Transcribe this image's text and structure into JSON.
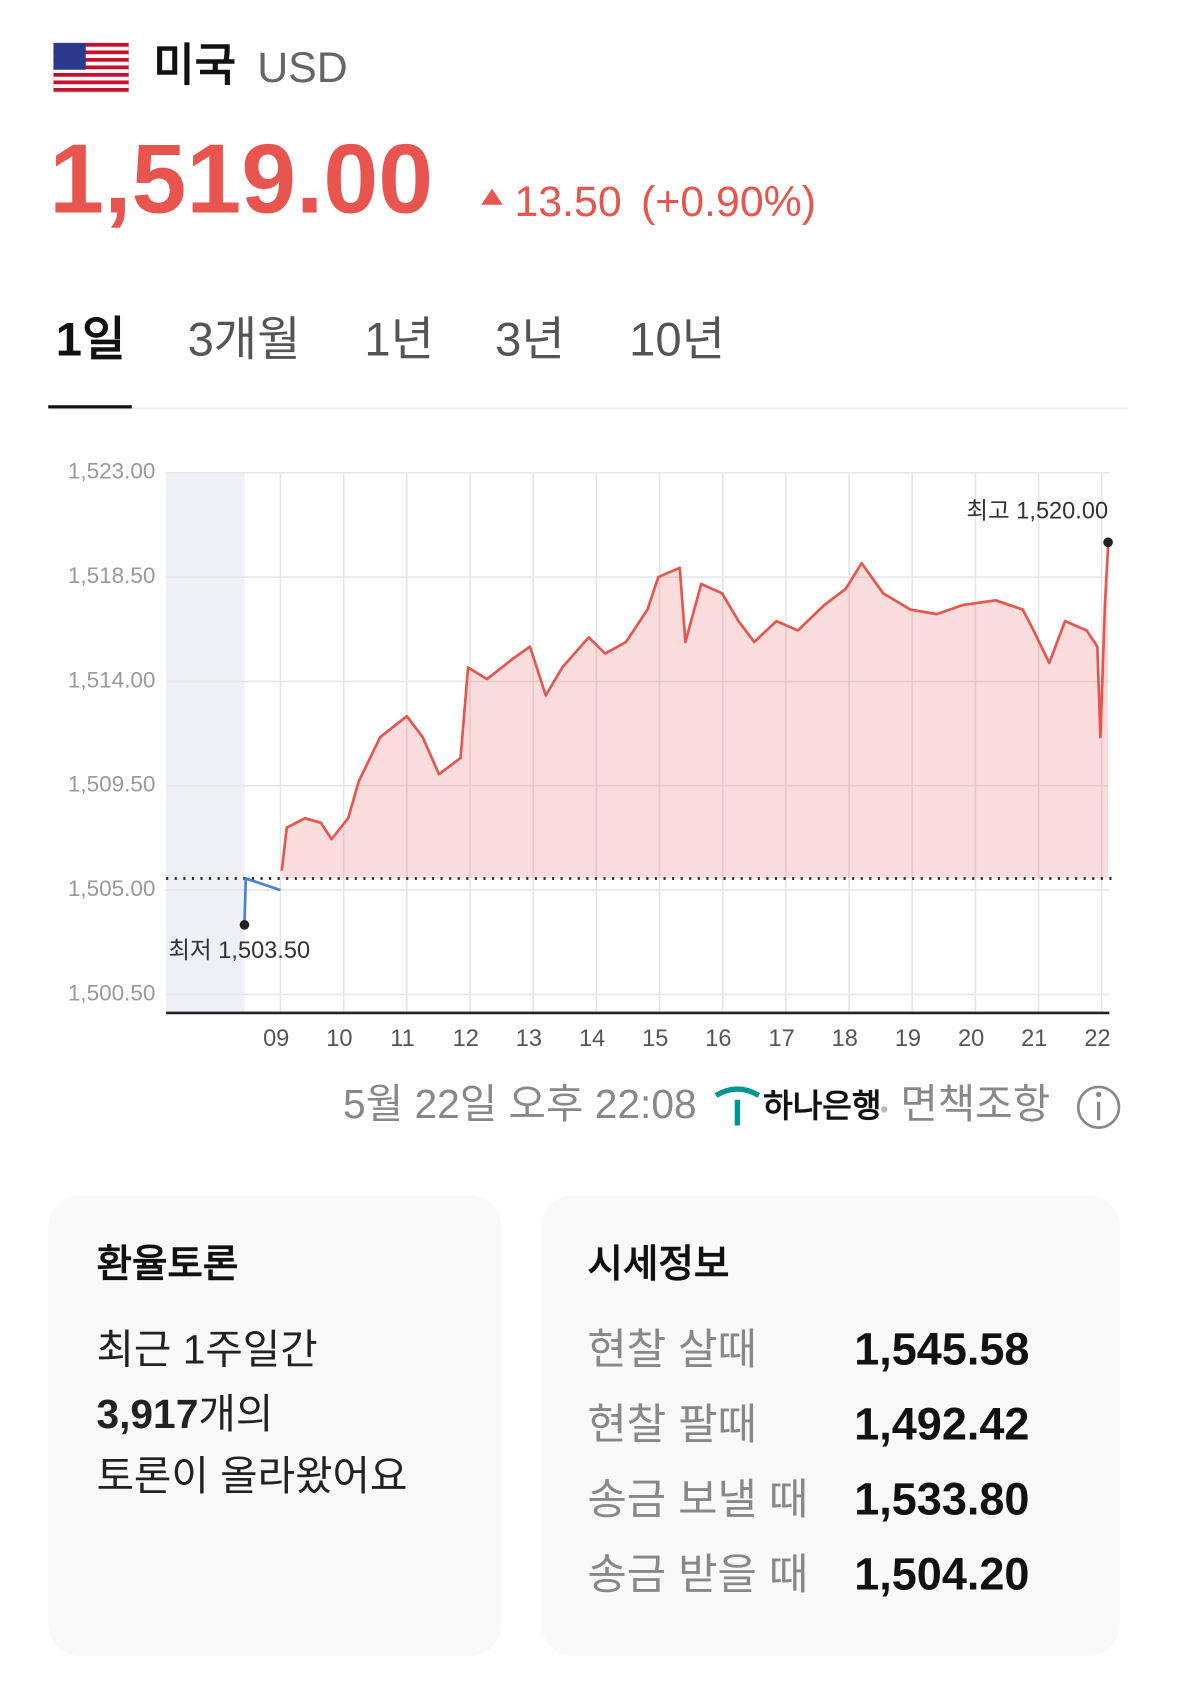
{
  "header": {
    "country": "미국",
    "currency": "USD"
  },
  "price": {
    "value": "1,519.00",
    "change": "13.50",
    "change_pct": "(+0.90%)"
  },
  "tabs": [
    "1일",
    "3개월",
    "1년",
    "3년",
    "10년"
  ],
  "chart_data": {
    "type": "line",
    "x": [
      8.43,
      8.45,
      9.0,
      9.02,
      9.1,
      9.39,
      9.64,
      9.81,
      10.07,
      10.24,
      10.58,
      11.0,
      11.25,
      11.51,
      11.85,
      11.97,
      12.27,
      12.69,
      12.95,
      13.2,
      13.46,
      13.88,
      14.14,
      14.47,
      14.81,
      14.98,
      15.32,
      15.41,
      15.66,
      15.99,
      16.25,
      16.5,
      16.85,
      17.19,
      17.61,
      17.95,
      18.2,
      18.54,
      18.97,
      19.39,
      19.81,
      20.32,
      20.75,
      20.92,
      21.17,
      21.42,
      21.76,
      21.93,
      21.98,
      22.05,
      22.1
    ],
    "series": [
      {
        "color": "#4a7fe0",
        "values": [
          1503.5,
          1505.5,
          1505.0,
          null,
          null,
          null,
          null,
          null,
          null,
          null,
          null,
          null,
          null,
          null,
          null,
          null,
          null,
          null,
          null,
          null,
          null,
          null,
          null,
          null,
          null,
          null,
          null,
          null,
          null,
          null,
          null,
          null,
          null,
          null,
          null,
          null,
          null,
          null,
          null,
          null,
          null,
          null,
          null,
          null,
          null,
          null,
          null,
          null,
          null,
          null,
          null
        ]
      },
      {
        "color": "#e8554e",
        "values": [
          null,
          null,
          null,
          1505.84,
          1507.7,
          1508.1,
          1507.9,
          1507.2,
          1508.1,
          1509.7,
          1511.6,
          1512.5,
          1511.6,
          1510.0,
          1510.7,
          1514.6,
          1514.1,
          1515.0,
          1515.5,
          1513.4,
          1514.6,
          1515.9,
          1515.2,
          1515.7,
          1517.1,
          1518.5,
          1518.9,
          1515.7,
          1518.2,
          1517.8,
          1516.6,
          1515.7,
          1516.6,
          1516.2,
          1517.3,
          1518.0,
          1519.1,
          1517.8,
          1517.1,
          1516.9,
          1517.3,
          1517.5,
          1517.1,
          1516.2,
          1514.8,
          1516.6,
          1516.2,
          1515.5,
          1511.6,
          1517.3,
          1519.8
        ]
      }
    ],
    "reference": 1505.5,
    "shaded_until": 8.43,
    "xlim": [
      7.19,
      22.12
    ],
    "ylim": [
      1499.7,
      1523
    ],
    "xticks": [
      {
        "value": 9,
        "label": "09"
      },
      10,
      11,
      12,
      13,
      14,
      15,
      16,
      17,
      18,
      19,
      20,
      21,
      22
    ],
    "yticks": [
      {
        "value": 1500.5,
        "label": "1,500.50"
      },
      {
        "value": 1505,
        "label": "1,505.00"
      },
      {
        "value": 1509.5,
        "label": "1,509.50"
      },
      {
        "value": 1514,
        "label": "1,514.00"
      },
      {
        "value": 1518.5,
        "label": "1,518.50"
      },
      {
        "value": 1523,
        "label": "1,523.00"
      }
    ],
    "annotations": [
      {
        "text": "최고 1,520.00",
        "x": 22.1,
        "y": 1520
      },
      {
        "text": "최저 1,503.50",
        "x": 8.43,
        "y": 1503.5
      }
    ],
    "grid": true
  },
  "footer": {
    "timestamp": "5월 22일 오후 22:08",
    "bank": "하나은행",
    "disclaimer": "면책조항"
  },
  "discussion": {
    "title": "환율토론",
    "line1": "최근 1주일간",
    "count": "3,917",
    "count_suffix": "개의",
    "line3": "토론이 올라왔어요"
  },
  "rates": {
    "title": "시세정보",
    "rows": [
      [
        "현찰 살때",
        "1,545.58"
      ],
      [
        "현찰 팔때",
        "1,492.42"
      ],
      [
        "송금 보낼 때",
        "1,533.80"
      ],
      [
        "송금 받을 때",
        "1,504.20"
      ]
    ]
  }
}
